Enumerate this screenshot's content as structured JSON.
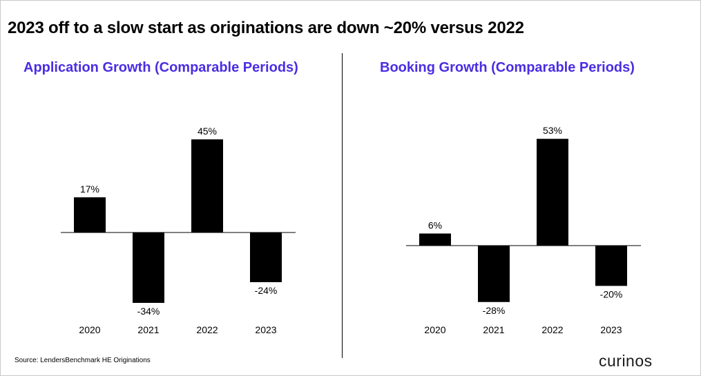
{
  "title": "2023 off to a slow start as originations are down ~20% versus 2022",
  "accent_color": "#4a2de3",
  "source": "Source: LendersBenchmark HE Originations",
  "logo_text": "curinos",
  "chart_data": [
    {
      "type": "bar",
      "title": "Application Growth (Comparable Periods)",
      "categories": [
        "2020",
        "2021",
        "2022",
        "2023"
      ],
      "values": [
        17,
        -34,
        45,
        -24
      ],
      "labels": [
        "17%",
        "-34%",
        "45%",
        "-24%"
      ],
      "unit": "%",
      "bar_color": "#000000",
      "grid": false,
      "legend": "none"
    },
    {
      "type": "bar",
      "title": "Booking Growth (Comparable Periods)",
      "categories": [
        "2020",
        "2021",
        "2022",
        "2023"
      ],
      "values": [
        6,
        -28,
        53,
        -20
      ],
      "labels": [
        "6%",
        "-28%",
        "53%",
        "-20%"
      ],
      "unit": "%",
      "bar_color": "#000000",
      "grid": false,
      "legend": "none"
    }
  ]
}
